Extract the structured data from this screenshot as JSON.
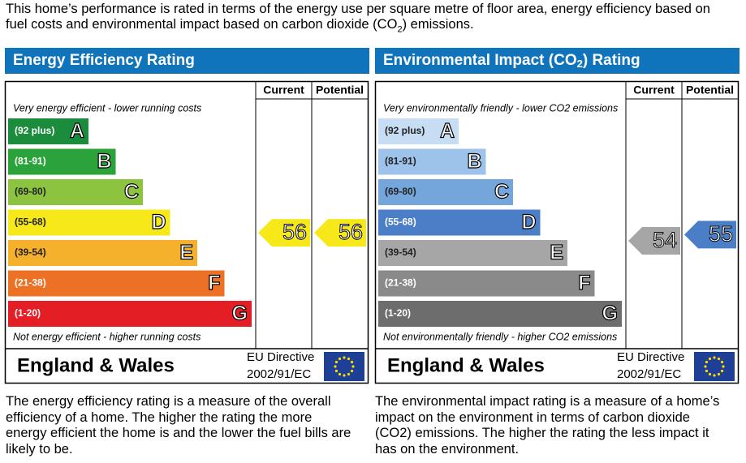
{
  "intro": {
    "text_before": "This home’s performance is rated in terms of the energy use per square metre of floor area, energy efficiency based on fuel costs and environmental impact based on carbon dioxide (CO",
    "subscript": "2",
    "text_after": ") emissions."
  },
  "panels": [
    {
      "title_before": "Energy Efficiency Rating",
      "header_current": "Current",
      "header_potential": "Potential",
      "top_note": "Very energy efficient - lower running costs",
      "bottom_note": "Not energy efficient - higher running costs",
      "bands": [
        {
          "range": "(92 plus)",
          "letter": "A",
          "color": "#1a8c3c"
        },
        {
          "range": "(81-91)",
          "letter": "B",
          "color": "#2ba23a"
        },
        {
          "range": "(69-80)",
          "letter": "C",
          "color": "#8cc43f"
        },
        {
          "range": "(55-68)",
          "letter": "D",
          "color": "#f7e81a"
        },
        {
          "range": "(39-54)",
          "letter": "E",
          "color": "#f5b02c"
        },
        {
          "range": "(21-38)",
          "letter": "F",
          "color": "#ec7124"
        },
        {
          "range": "(1-20)",
          "letter": "G",
          "color": "#e31e25"
        }
      ],
      "current": 56,
      "potential": 56,
      "region": "England & Wales",
      "directive": "EU Directive",
      "directive_code": "2002/91/EC",
      "description": "The energy efficiency rating is a measure of the overall efficiency of a home. The higher the rating the more energy efficient the home is and the lower the fuel bills are likely to be."
    },
    {
      "title_before": "Environmental Impact (CO",
      "title_subscript": "2",
      "title_after": ") Rating",
      "header_current": "Current",
      "header_potential": "Potential",
      "top_note": "Very environmentally friendly - lower CO2 emissions",
      "bottom_note": "Not environmentally friendly - higher CO2 emissions",
      "bands": [
        {
          "range": "(92 plus)",
          "letter": "A",
          "color": "#c7ddf3"
        },
        {
          "range": "(81-91)",
          "letter": "B",
          "color": "#9dc3eb"
        },
        {
          "range": "(69-80)",
          "letter": "C",
          "color": "#74a6dc"
        },
        {
          "range": "(55-68)",
          "letter": "D",
          "color": "#4a7fc7"
        },
        {
          "range": "(39-54)",
          "letter": "E",
          "color": "#a6a6a6"
        },
        {
          "range": "(21-38)",
          "letter": "F",
          "color": "#8a8a8a"
        },
        {
          "range": "(1-20)",
          "letter": "G",
          "color": "#6d6d6d"
        }
      ],
      "current": 54,
      "potential": 55,
      "region": "England & Wales",
      "directive": "EU Directive",
      "directive_code": "2002/91/EC",
      "description": "The environmental impact rating is a measure of a home’s impact on the environment in terms of carbon dioxide (CO2) emissions. The higher the rating the less impact it has on the environment."
    }
  ]
}
